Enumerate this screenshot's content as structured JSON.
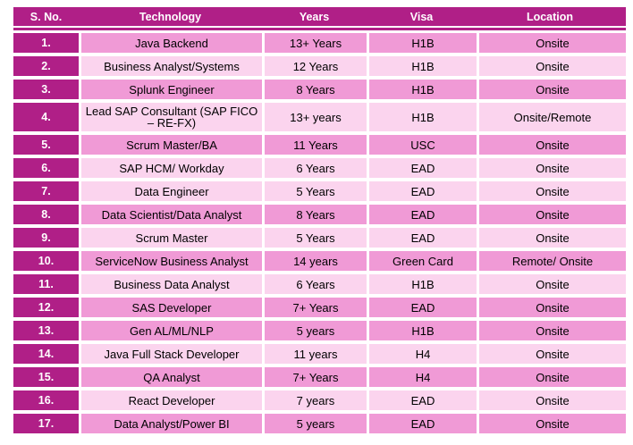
{
  "colors": {
    "magenta": "#B01F87",
    "dark_pink": "#F09AD6",
    "light_pink": "#FBD4EE",
    "border_white": "#FFFFFF",
    "header_text": "#FFFFFF",
    "body_text": "#000000"
  },
  "table": {
    "columns": [
      {
        "key": "sno",
        "label": "S. No."
      },
      {
        "key": "technology",
        "label": "Technology"
      },
      {
        "key": "years",
        "label": "Years"
      },
      {
        "key": "visa",
        "label": "Visa"
      },
      {
        "key": "location",
        "label": "Location"
      }
    ],
    "rows": [
      {
        "sno": "1.",
        "technology": "Java Backend",
        "years": "13+ Years",
        "visa": "H1B",
        "location": "Onsite",
        "shade": "dark"
      },
      {
        "sno": "2.",
        "technology": "Business Analyst/Systems",
        "years": "12 Years",
        "visa": "H1B",
        "location": "Onsite",
        "shade": "light"
      },
      {
        "sno": "3.",
        "technology": "Splunk Engineer",
        "years": "8 Years",
        "visa": "H1B",
        "location": "Onsite",
        "shade": "dark"
      },
      {
        "sno": "4.",
        "technology": "Lead SAP Consultant (SAP FICO – RE-FX)",
        "years": "13+ years",
        "visa": "H1B",
        "location": "Onsite/Remote",
        "shade": "light"
      },
      {
        "sno": "5.",
        "technology": "Scrum Master/BA",
        "years": "11 Years",
        "visa": "USC",
        "location": "Onsite",
        "shade": "dark"
      },
      {
        "sno": "6.",
        "technology": "SAP HCM/ Workday",
        "years": "6 Years",
        "visa": "EAD",
        "location": "Onsite",
        "shade": "light"
      },
      {
        "sno": "7.",
        "technology": "Data Engineer",
        "years": "5 Years",
        "visa": "EAD",
        "location": "Onsite",
        "shade": "light"
      },
      {
        "sno": "8.",
        "technology": "Data Scientist/Data Analyst",
        "years": "8 Years",
        "visa": "EAD",
        "location": "Onsite",
        "shade": "dark"
      },
      {
        "sno": "9.",
        "technology": "Scrum Master",
        "years": "5 Years",
        "visa": "EAD",
        "location": "Onsite",
        "shade": "light"
      },
      {
        "sno": "10.",
        "technology": "ServiceNow Business Analyst",
        "years": "14 years",
        "visa": "Green Card",
        "location": "Remote/ Onsite",
        "shade": "dark"
      },
      {
        "sno": "11.",
        "technology": "Business Data Analyst",
        "years": "6 Years",
        "visa": "H1B",
        "location": "Onsite",
        "shade": "light"
      },
      {
        "sno": "12.",
        "technology": "SAS Developer",
        "years": "7+ Years",
        "visa": "EAD",
        "location": "Onsite",
        "shade": "dark"
      },
      {
        "sno": "13.",
        "technology": "Gen AL/ML/NLP",
        "years": "5 years",
        "visa": "H1B",
        "location": "Onsite",
        "shade": "dark"
      },
      {
        "sno": "14.",
        "technology": "Java Full Stack Developer",
        "years": "11 years",
        "visa": "H4",
        "location": "Onsite",
        "shade": "light"
      },
      {
        "sno": "15.",
        "technology": "QA Analyst",
        "years": "7+ Years",
        "visa": "H4",
        "location": "Onsite",
        "shade": "dark"
      },
      {
        "sno": "16.",
        "technology": "React Developer",
        "years": "7 years",
        "visa": "EAD",
        "location": "Onsite",
        "shade": "light"
      },
      {
        "sno": "17.",
        "technology": "Data Analyst/Power BI",
        "years": "5 years",
        "visa": "EAD",
        "location": "Onsite",
        "shade": "dark"
      }
    ]
  }
}
